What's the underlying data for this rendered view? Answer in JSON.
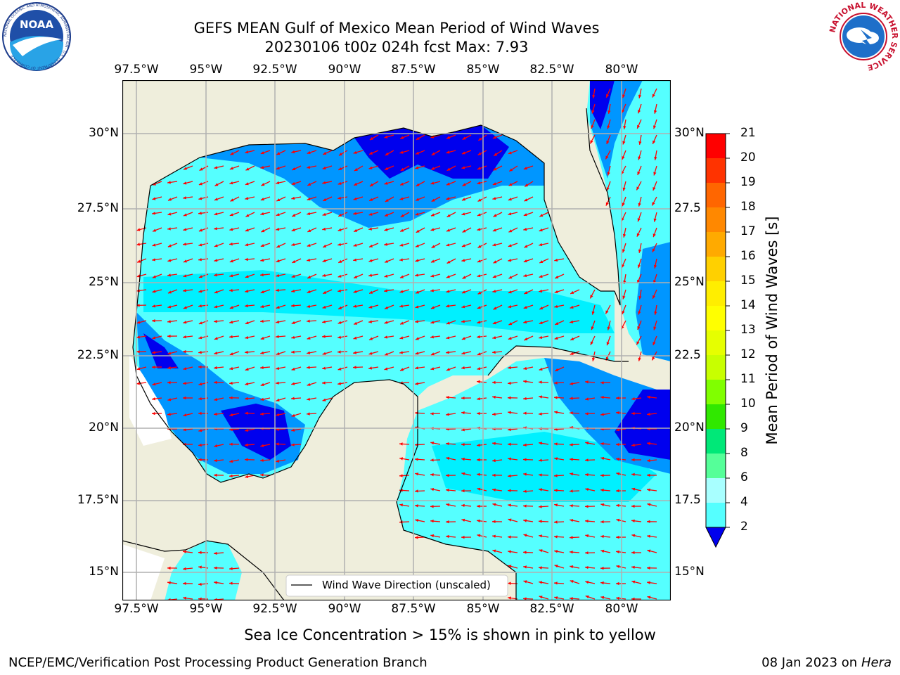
{
  "header": {
    "title_line1": "GEFS MEAN Gulf of Mexico Mean Period of Wind Waves",
    "title_line2": "20230106 t00z 024h fcst   Max: 7.93"
  },
  "logos": {
    "noaa_text": "NOAA",
    "noaa_ring": "NATIONAL OCEANIC AND ATMOSPHERIC ADMINISTRATION · U.S. DEPARTMENT OF COMMERCE",
    "nws_ring": "NATIONAL WEATHER SERVICE"
  },
  "axes": {
    "lon_ticks": [
      "97.5°W",
      "95°W",
      "92.5°W",
      "90°W",
      "87.5°W",
      "85°W",
      "82.5°W",
      "80°W"
    ],
    "lat_ticks_left": [
      "30°N",
      "27.5°N",
      "25°N",
      "22.5°N",
      "20°N",
      "17.5°N",
      "15°N"
    ],
    "lat_ticks_right": [
      "30°N",
      "27.5",
      "25°N",
      "22.5",
      "20°N",
      "17.5",
      "15°N"
    ]
  },
  "legend": {
    "label": "Wind Wave Direction (unscaled)"
  },
  "colorbar": {
    "label": "Mean Period of Wind Waves [s]",
    "ticks": [
      "21",
      "20",
      "19",
      "18",
      "17",
      "16",
      "15",
      "14",
      "13",
      "12",
      "11",
      "10",
      "9",
      "8",
      "6",
      "4",
      "2"
    ],
    "colors": [
      "#ff0000",
      "#ff3300",
      "#ff6600",
      "#ff8800",
      "#ffaa00",
      "#ffd000",
      "#ffee00",
      "#ffff00",
      "#e6ff00",
      "#c8ff00",
      "#80ff00",
      "#30e800",
      "#00e878",
      "#55ff99",
      "#a8ffff",
      "#55ffff",
      "#00f0ff",
      "#0096ff",
      "#0000ee"
    ]
  },
  "notes": {
    "ice": "Sea Ice Concentration > 15% is shown in pink to yellow",
    "credit": "NCEP/EMC/Verification Post Processing Product Generation Branch",
    "date": "08 Jan 2023 on ",
    "host": "Hera"
  },
  "colors": {
    "land": "#efeedc",
    "ocean_mid": "#55ffff",
    "ocean_low": "#00f0ff",
    "ocean_blue": "#0096ff",
    "ocean_dark": "#0000ee",
    "arrow": "#ff0000",
    "grid": "#b0b0b0"
  }
}
